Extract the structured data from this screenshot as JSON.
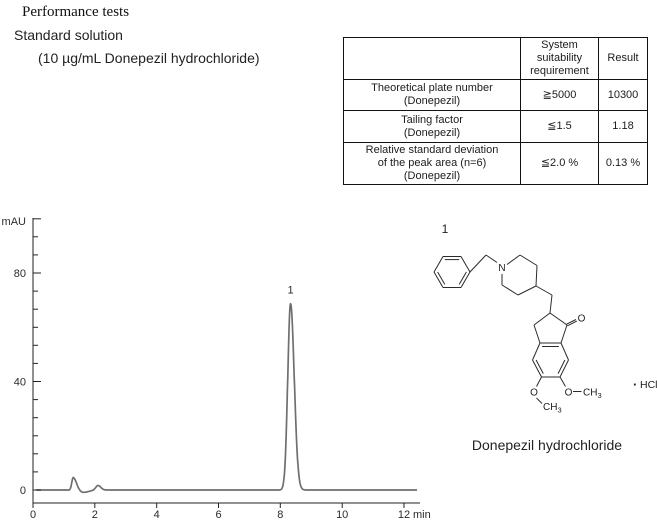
{
  "header": {
    "title": "Performance tests",
    "subtitle": "Standard solution",
    "subtitle2": "(10 µg/mL Donepezil hydrochloride)"
  },
  "table": {
    "headers": [
      "",
      "System\nsuitability\nrequirement",
      "Result"
    ],
    "rows": [
      {
        "parameter": "Theoretical plate number\n(Donepezil)",
        "requirement": "≧5000",
        "result": "10300"
      },
      {
        "parameter": "Tailing factor\n(Donepezil)",
        "requirement": "≦1.5",
        "result": "1.18"
      },
      {
        "parameter": "Relative standard deviation\nof the peak area (n=6)\n(Donepezil)",
        "requirement": "≦2.0 %",
        "result": "0.13 %"
      }
    ]
  },
  "chart_data": {
    "type": "line",
    "kind": "chromatogram",
    "title": "",
    "y_unit": "mAU",
    "x_unit": "min",
    "xlim": [
      0,
      12.45
    ],
    "ylim": [
      0,
      100
    ],
    "x_ticks": [
      0,
      2,
      4,
      6,
      8,
      10,
      12
    ],
    "y_ticks": [
      0,
      40,
      80
    ],
    "grid": false,
    "trace_color": "#6f6f6f",
    "axis_color": "#222222",
    "peaks": [
      {
        "label": "",
        "t": 1.3,
        "height": 4.8,
        "sigma_l": 0.045,
        "sigma_r": 0.11
      },
      {
        "label": "",
        "t": 1.62,
        "height": -0.9,
        "sigma_l": 0.18,
        "sigma_r": 0.18
      },
      {
        "label": "",
        "t": 2.1,
        "height": 1.7,
        "sigma_l": 0.07,
        "sigma_r": 0.09
      },
      {
        "label": "1",
        "t": 8.33,
        "height": 68.7,
        "sigma_l": 0.09,
        "sigma_r": 0.12
      }
    ]
  },
  "molecule": {
    "structure_label": "1",
    "n_label": "N",
    "o_ketone": "O",
    "o_left": "O",
    "o_right": "O",
    "methyl": {
      "base": "CH",
      "sub": "3"
    },
    "salt_dot": "·",
    "salt": "HCl",
    "caption": "Donepezil hydrochloride"
  }
}
